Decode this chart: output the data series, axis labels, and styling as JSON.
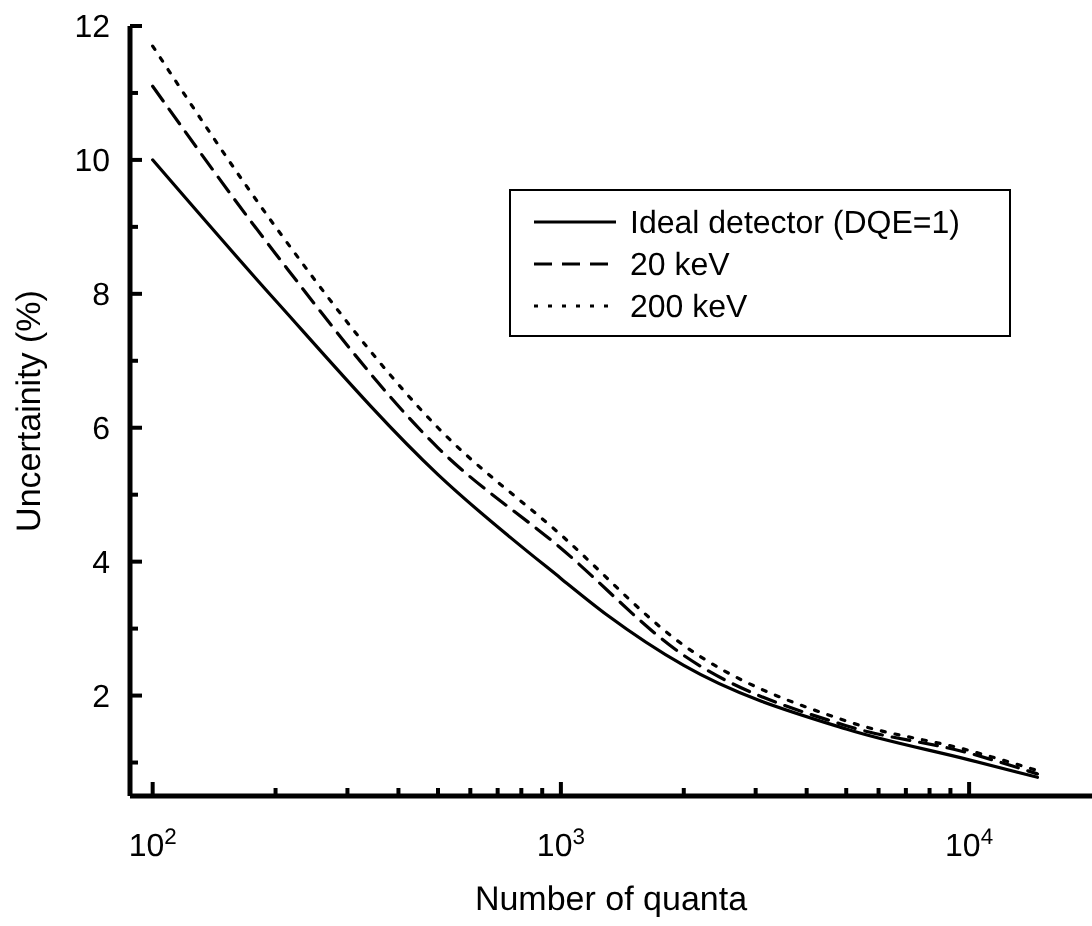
{
  "chart_data": {
    "type": "line",
    "xlabel": "Number of quanta",
    "ylabel": "Uncertainity (%)",
    "log": "x",
    "xlim": [
      88,
      20000
    ],
    "xticks": [
      {
        "value": 100,
        "label": "10$^{2}$"
      },
      {
        "value": 200,
        "label": null
      },
      {
        "value": 300,
        "label": null
      },
      {
        "value": 400,
        "label": null
      },
      {
        "value": 500,
        "label": null
      },
      {
        "value": 600,
        "label": null
      },
      {
        "value": 700,
        "label": null
      },
      {
        "value": 800,
        "label": null
      },
      {
        "value": 900,
        "label": null
      },
      {
        "value": 1000,
        "label": "10$^{3}$"
      },
      {
        "value": 2000,
        "label": null
      },
      {
        "value": 3000,
        "label": null
      },
      {
        "value": 4000,
        "label": null
      },
      {
        "value": 5000,
        "label": null
      },
      {
        "value": 6000,
        "label": null
      },
      {
        "value": 7000,
        "label": null
      },
      {
        "value": 8000,
        "label": null
      },
      {
        "value": 9000,
        "label": null
      },
      {
        "value": 10000,
        "label": "10$^{4}$"
      }
    ],
    "ylim": [
      0.5,
      12
    ],
    "yticks": [
      {
        "value": 1,
        "label": null
      },
      2,
      {
        "value": 3,
        "label": null
      },
      4,
      {
        "value": 5,
        "label": null
      },
      6,
      {
        "value": 7,
        "label": null
      },
      8,
      {
        "value": 9,
        "label": null
      },
      10,
      {
        "value": 11,
        "label": null
      },
      12
    ],
    "legend": "top right",
    "grid": false,
    "series": [
      {
        "name": "Ideal detector (DQE=1)",
        "color": "#000000",
        "line_style": "solid",
        "x": [
          100,
          200,
          500,
          1000,
          1300,
          2000,
          5000,
          10000,
          14700
        ],
        "values": [
          10,
          7.9,
          5.3,
          3.75,
          3.2,
          2.45,
          1.5,
          1.04,
          0.78
        ]
      },
      {
        "name": "20 keV",
        "color": "#000000",
        "line_style": "dashed",
        "x": [
          100,
          200,
          500,
          1000,
          2000,
          5000,
          10000,
          14700
        ],
        "values": [
          11.1,
          8.6,
          5.7,
          4.2,
          2.6,
          1.55,
          1.14,
          0.83
        ]
      },
      {
        "name": "200 keV",
        "color": "#000000",
        "line_style": "dotted",
        "x": [
          100,
          200,
          500,
          1000,
          2000,
          5000,
          10000,
          14700
        ],
        "values": [
          11.7,
          9.0,
          6.0,
          4.4,
          2.75,
          1.62,
          1.18,
          0.88
        ]
      }
    ]
  }
}
